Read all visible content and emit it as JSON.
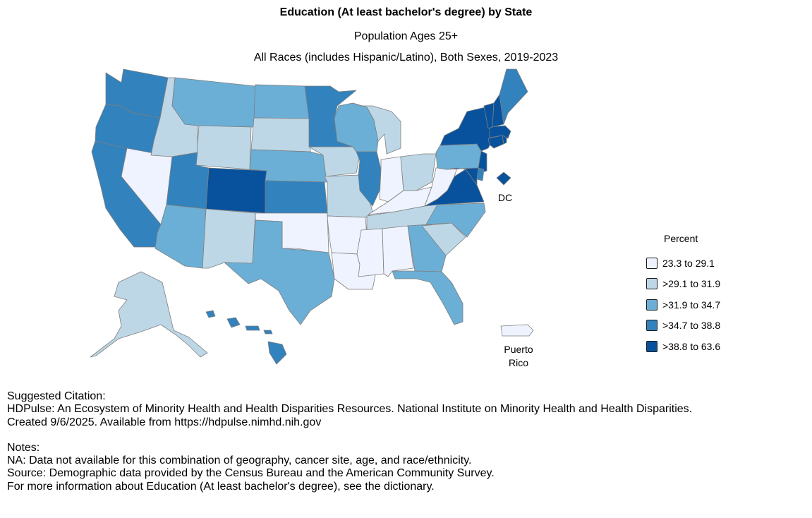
{
  "title": "Education (At least bachelor's degree) by State",
  "subtitle1": "Population Ages 25+",
  "subtitle2": "All Races (includes Hispanic/Latino), Both Sexes, 2019-2023",
  "map_labels": {
    "dc": "DC",
    "pr_line1": "Puerto",
    "pr_line2": "Rico"
  },
  "legend": {
    "title": "Percent",
    "items": [
      {
        "label": "23.3 to 29.1",
        "color": "#eff3ff"
      },
      {
        "label": ">29.1 to 31.9",
        "color": "#bdd7e7"
      },
      {
        "label": ">31.9 to 34.7",
        "color": "#6baed6"
      },
      {
        "label": ">34.7 to 38.8",
        "color": "#3182bd"
      },
      {
        "label": ">38.8 to 63.6",
        "color": "#08519c"
      }
    ]
  },
  "state_classes": {
    "WA": 3,
    "OR": 3,
    "CA": 3,
    "NV": 0,
    "ID": 1,
    "MT": 2,
    "WY": 1,
    "UT": 3,
    "CO": 4,
    "AZ": 2,
    "NM": 1,
    "ND": 2,
    "SD": 1,
    "NE": 2,
    "KS": 3,
    "OK": 0,
    "TX": 2,
    "MN": 3,
    "IA": 1,
    "MO": 1,
    "AR": 0,
    "LA": 0,
    "WI": 2,
    "IL": 3,
    "MI": 1,
    "IN": 0,
    "OH": 1,
    "KY": 0,
    "TN": 1,
    "MS": 0,
    "AL": 0,
    "GA": 2,
    "FL": 2,
    "SC": 1,
    "NC": 2,
    "VA": 4,
    "WV": 0,
    "PA": 2,
    "NY": 4,
    "VT": 4,
    "NH": 4,
    "ME": 3,
    "MA": 4,
    "CT": 4,
    "RI": 4,
    "NJ": 4,
    "DE": 3,
    "MD": 4,
    "DC": 4,
    "AK": 1,
    "HI": 3,
    "PR": 0
  },
  "notes": {
    "citation_heading": "Suggested Citation:",
    "citation_line1": "HDPulse: An Ecosystem of Minority Health and Health Disparities Resources. National Institute on Minority Health and Health Disparities.",
    "citation_line2": "Created 9/6/2025. Available from https://hdpulse.nimhd.nih.gov",
    "notes_heading": "Notes:",
    "note1": "NA: Data not available for this combination of geography, cancer site, age, and race/ethnicity.",
    "note2": "Source: Demographic data provided by the Census Bureau and the American Community Survey.",
    "note3": "For more information about Education (At least bachelor's degree), see the dictionary."
  }
}
